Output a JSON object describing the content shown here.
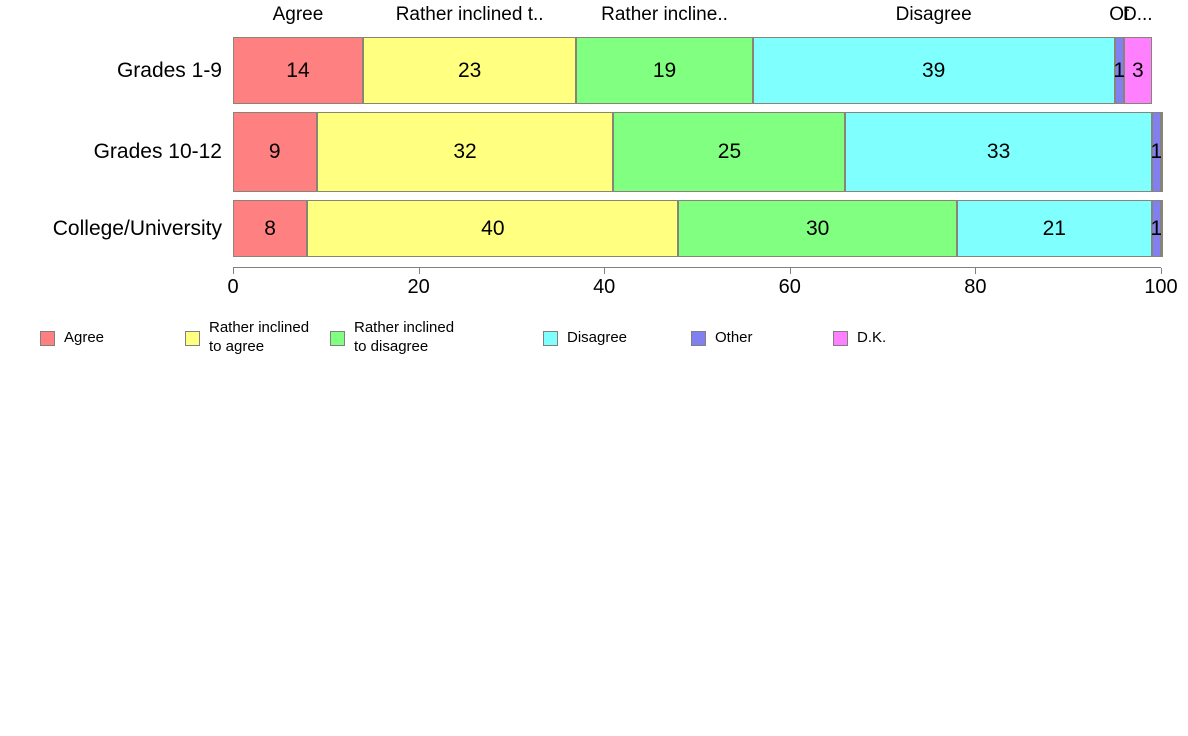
{
  "chart_data": {
    "type": "bar",
    "orientation": "horizontal",
    "stacked": true,
    "title": "",
    "xlabel": "",
    "ylabel": "",
    "categories": [
      "Grades 1-9",
      "Grades 10-12",
      "College/University"
    ],
    "series": [
      {
        "name": "Agree",
        "color": "#FF8080",
        "values": [
          14,
          9,
          8
        ]
      },
      {
        "name": "Rather inclined to agree",
        "color": "#FFFF80",
        "values": [
          23,
          32,
          40
        ]
      },
      {
        "name": "Rather inclined to disagree",
        "color": "#80FF80",
        "values": [
          19,
          25,
          30
        ]
      },
      {
        "name": "Disagree",
        "color": "#80FFFF",
        "values": [
          39,
          33,
          21
        ]
      },
      {
        "name": "Other",
        "color": "#8080F0",
        "values": [
          1,
          1,
          1
        ]
      },
      {
        "name": "D.K.",
        "color": "#FF80FF",
        "values": [
          3,
          0,
          0
        ]
      }
    ],
    "column_headers": [
      "Agree",
      "Rather inclined t..",
      "Rather incline..",
      "Disagree",
      "Ot",
      "D..."
    ],
    "x_axis": {
      "min": 0,
      "max": 100,
      "ticks": [
        0,
        20,
        40,
        60,
        80,
        100
      ]
    },
    "grid": false,
    "legend_position": "bottom",
    "legend": [
      {
        "label": "Agree",
        "color": "#FF8080"
      },
      {
        "label": "Rather inclined\nto agree",
        "color": "#FFFF80"
      },
      {
        "label": "Rather inclined\nto disagree",
        "color": "#80FF80"
      },
      {
        "label": "Disagree",
        "color": "#80FFFF"
      },
      {
        "label": "Other",
        "color": "#8080F0"
      },
      {
        "label": "D.K.",
        "color": "#FF80FF"
      }
    ]
  }
}
